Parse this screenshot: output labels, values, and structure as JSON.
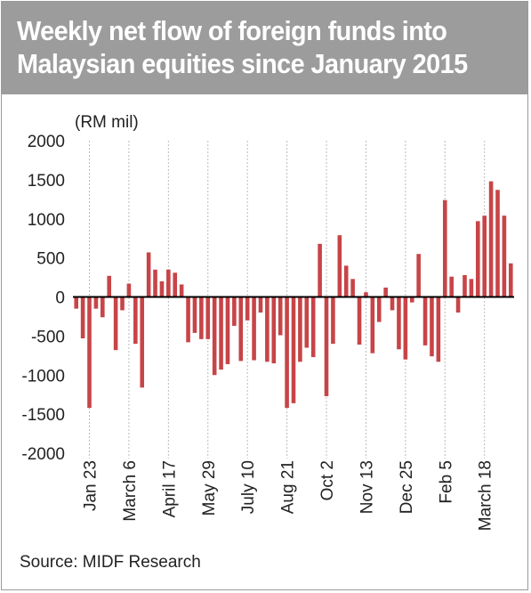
{
  "header": {
    "title_line1": "Weekly net flow of foreign funds into",
    "title_line2": "Malaysian equities since January 2015"
  },
  "footer": {
    "source": "Source: MIDF Research"
  },
  "colors": {
    "bar": "#c74447",
    "title_bg": "#9c9c9c",
    "axis": "#000000",
    "grid": "#bbbbbb"
  },
  "chart_data": {
    "type": "bar",
    "ylabel": "(RM mil)",
    "ylim": [
      -2000,
      2000
    ],
    "yticks": [
      2000,
      1500,
      1000,
      500,
      0,
      -500,
      -1000,
      -1500,
      -2000
    ],
    "grid": "vertical dashed",
    "xticklabels": [
      "Jan 23",
      "March 6",
      "April 17",
      "May 29",
      "July 10",
      "Aug 21",
      "Oct 2",
      "Nov 13",
      "Dec 25",
      "Feb 5",
      "March 18"
    ],
    "xtick_indices": [
      2,
      8,
      14,
      20,
      26,
      32,
      38,
      44,
      50,
      56,
      62
    ],
    "values": [
      -150,
      -530,
      -1420,
      -150,
      -260,
      270,
      -680,
      -170,
      170,
      -600,
      -1160,
      570,
      350,
      200,
      350,
      310,
      160,
      -580,
      -460,
      -540,
      -540,
      -1000,
      -930,
      -860,
      -370,
      -820,
      -300,
      -810,
      -200,
      -830,
      -850,
      -490,
      -1420,
      -1360,
      -830,
      -650,
      -770,
      680,
      -1270,
      -600,
      790,
      400,
      230,
      -610,
      60,
      -720,
      -320,
      120,
      -170,
      -670,
      -800,
      -70,
      550,
      -620,
      -760,
      -830,
      1240,
      260,
      -200,
      280,
      230,
      970,
      1040,
      1480,
      1370,
      1040,
      430
    ]
  }
}
